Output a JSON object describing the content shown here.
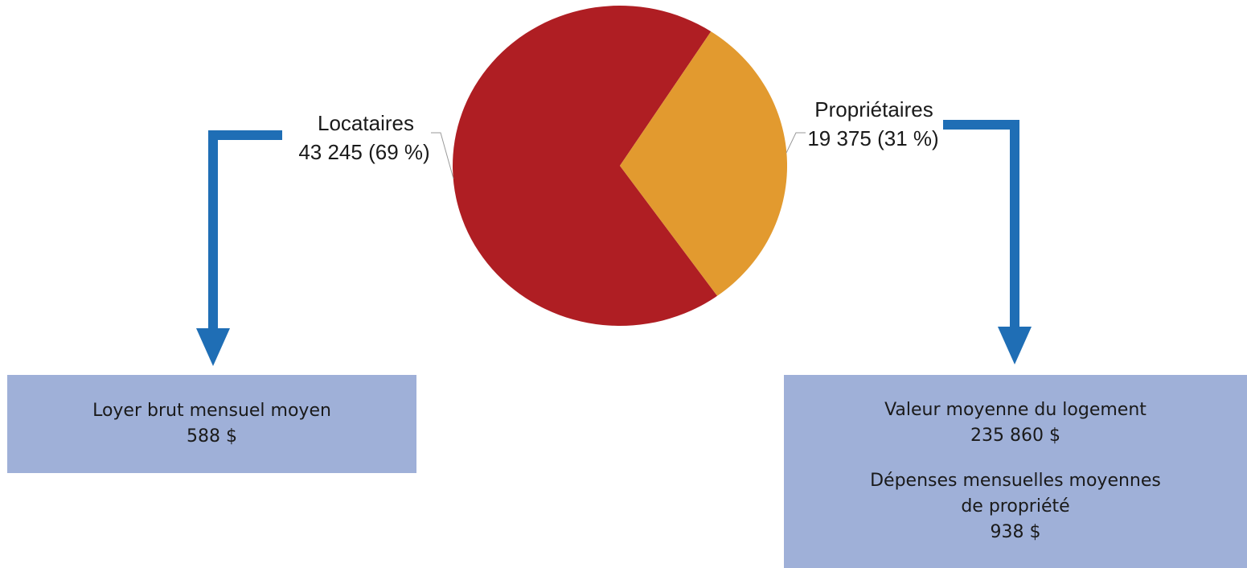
{
  "chart_data": {
    "type": "pie",
    "slices": [
      {
        "name": "Locataires",
        "value": 43245,
        "percent": 69,
        "label_line1": "Locataires",
        "label_line2": "43 245 (69 %)",
        "color": "#af1e23"
      },
      {
        "name": "Propriétaires",
        "value": 19375,
        "percent": 31,
        "label_line1": "Propriétaires",
        "label_line2": "19 375 (31 %)",
        "color": "#e29a2f"
      }
    ]
  },
  "arrow_color": "#1f6eb5",
  "boxes": {
    "left": {
      "title": "Loyer brut mensuel moyen",
      "value": "588 $"
    },
    "right": {
      "title1": "Valeur moyenne du logement",
      "value1": "235 860 $",
      "title2_line1": "Dépenses mensuelles moyennes",
      "title2_line2": "de propriété",
      "value2": "938 $"
    }
  },
  "box_color": "#9fb0d8"
}
